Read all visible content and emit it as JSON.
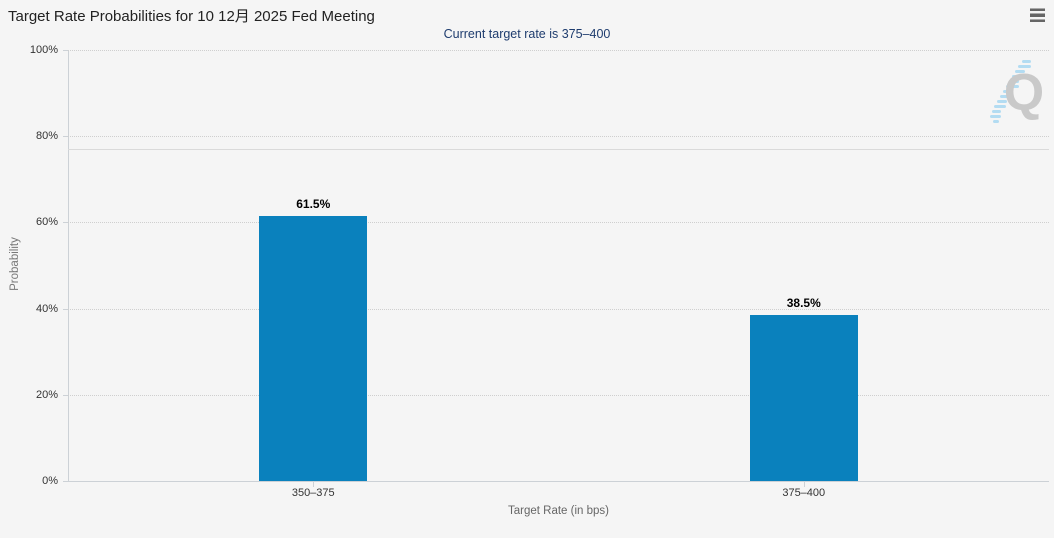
{
  "header": {
    "menu_tooltip": "chart context menu"
  },
  "chart_data": {
    "type": "bar",
    "title": "Target Rate Probabilities for 10 12月 2025 Fed Meeting",
    "subtitle": "Current target rate is 375–400",
    "categories": [
      "350–375",
      "375–400"
    ],
    "values": [
      61.5,
      38.5
    ],
    "data_labels": [
      "61.5%",
      "38.5%"
    ],
    "xlabel": "Target Rate (in bps)",
    "ylabel": "Probability",
    "ylim": [
      0,
      100
    ],
    "ytick_step": 20,
    "yticks": [
      "0%",
      "20%",
      "40%",
      "60%",
      "80%",
      "100%"
    ],
    "grid": "dotted horizontal gridlines",
    "legend": "none",
    "reference_line_pct": 77,
    "bar_color": "#0a81bd",
    "background_color": "#f5f5f5",
    "subtitle_color": "#1e3c6e"
  },
  "watermark": {
    "letter": "Q"
  }
}
